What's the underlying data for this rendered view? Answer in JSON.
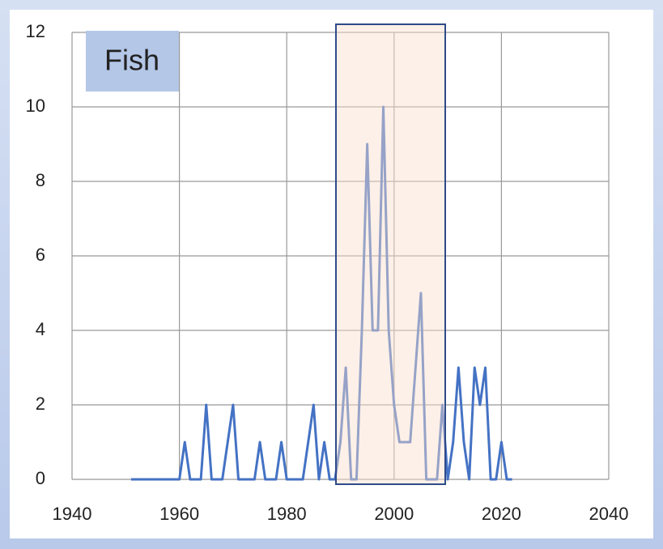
{
  "chart_data": {
    "type": "line",
    "annotation": "Fish",
    "x": [
      1951,
      1952,
      1953,
      1954,
      1955,
      1956,
      1957,
      1958,
      1959,
      1960,
      1961,
      1962,
      1963,
      1964,
      1965,
      1966,
      1967,
      1968,
      1969,
      1970,
      1971,
      1972,
      1973,
      1974,
      1975,
      1976,
      1977,
      1978,
      1979,
      1980,
      1981,
      1982,
      1983,
      1984,
      1985,
      1986,
      1987,
      1988,
      1989,
      1990,
      1991,
      1992,
      1993,
      1994,
      1995,
      1996,
      1997,
      1998,
      1999,
      2000,
      2001,
      2002,
      2003,
      2004,
      2005,
      2006,
      2007,
      2008,
      2009,
      2010,
      2011,
      2012,
      2013,
      2014,
      2015,
      2016,
      2017,
      2018,
      2019,
      2020,
      2021,
      2022
    ],
    "series": [
      {
        "color": "#4472c4",
        "values": [
          0,
          0,
          0,
          0,
          0,
          0,
          0,
          0,
          0,
          0,
          1,
          0,
          0,
          0,
          2,
          0,
          0,
          0,
          1,
          2,
          0,
          0,
          0,
          0,
          1,
          0,
          0,
          0,
          1,
          0,
          0,
          0,
          0,
          1,
          2,
          0,
          1,
          0,
          0,
          1,
          3,
          0,
          0,
          4,
          9,
          4,
          4,
          10,
          4,
          2,
          1,
          1,
          1,
          3,
          5,
          0,
          0,
          0,
          2,
          0,
          1,
          3,
          1,
          0,
          3,
          2,
          3,
          0,
          0,
          1,
          0,
          0
        ]
      }
    ],
    "xlim": [
      1940,
      2040
    ],
    "xticks": [
      1940,
      1960,
      1980,
      2000,
      2020,
      2040
    ],
    "ylim": [
      0,
      12
    ],
    "yticks": [
      0,
      2,
      4,
      6,
      8,
      10,
      12
    ],
    "grid": true
  }
}
